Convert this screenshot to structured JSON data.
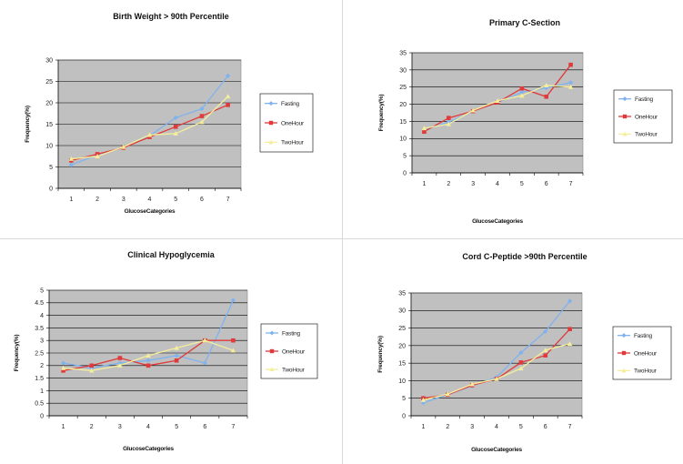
{
  "colors": {
    "plot_bg": "#c0c0c0",
    "grid": "#000000",
    "Fasting": "#7fb2ee",
    "OneHour": "#e03a3a",
    "TwoHour": "#f4ee9c"
  },
  "chart_data": [
    {
      "type": "line",
      "title": "Birth Weight > 90th Percentile",
      "xlabel": "GlucoseCategories",
      "ylabel": "Frequency(%)",
      "categories": [
        "1",
        "2",
        "3",
        "4",
        "5",
        "6",
        "7"
      ],
      "ylim": [
        0,
        30
      ],
      "yticks": [
        "0",
        "5",
        "10",
        "15",
        "20",
        "25",
        "30"
      ],
      "grid": true,
      "legend": "right",
      "series": [
        {
          "name": "Fasting",
          "values": [
            5.5,
            7.8,
            9.6,
            12.3,
            16.5,
            18.6,
            26.3
          ]
        },
        {
          "name": "OneHour",
          "values": [
            6.5,
            8.0,
            9.5,
            12.0,
            14.4,
            16.9,
            19.5
          ]
        },
        {
          "name": "TwoHour",
          "values": [
            6.9,
            7.5,
            9.7,
            12.5,
            12.8,
            15.5,
            21.5
          ]
        }
      ]
    },
    {
      "type": "line",
      "title": "Primary C-Section",
      "xlabel": "GlucoseCategories",
      "ylabel": "Frequency(%)",
      "categories": [
        "1",
        "2",
        "3",
        "4",
        "5",
        "6",
        "7"
      ],
      "ylim": [
        0,
        35
      ],
      "yticks": [
        "0",
        "5",
        "10",
        "15",
        "20",
        "25",
        "30",
        "35"
      ],
      "grid": true,
      "legend": "right",
      "series": [
        {
          "name": "Fasting",
          "values": [
            12.5,
            14.8,
            18.0,
            20.5,
            23.5,
            24.8,
            26.3
          ]
        },
        {
          "name": "OneHour",
          "values": [
            12.0,
            16.0,
            18.0,
            20.5,
            24.6,
            22.2,
            31.5
          ]
        },
        {
          "name": "TwoHour",
          "values": [
            13.0,
            14.2,
            18.2,
            21.0,
            22.5,
            25.5,
            25.0
          ]
        }
      ]
    },
    {
      "type": "line",
      "title": "Clinical Hypoglycemia",
      "xlabel": "GlucoseCategories",
      "ylabel": "Frequency(%)",
      "categories": [
        "1",
        "2",
        "3",
        "4",
        "5",
        "6",
        "7"
      ],
      "ylim": [
        0,
        5
      ],
      "yticks": [
        "0",
        "0.5",
        "1",
        "1.5",
        "2",
        "2.5",
        "3",
        "3.5",
        "4",
        "4.5",
        "5"
      ],
      "grid": true,
      "legend": "right",
      "series": [
        {
          "name": "Fasting",
          "values": [
            2.1,
            1.9,
            2.1,
            2.2,
            2.4,
            2.1,
            4.6
          ]
        },
        {
          "name": "OneHour",
          "values": [
            1.8,
            2.0,
            2.3,
            2.0,
            2.2,
            3.0,
            3.0
          ]
        },
        {
          "name": "TwoHour",
          "values": [
            1.9,
            1.8,
            2.0,
            2.4,
            2.7,
            3.0,
            2.6
          ]
        }
      ]
    },
    {
      "type": "line",
      "title": "Cord C-Peptide >90th Percentile",
      "xlabel": "GlucoseCategories",
      "ylabel": "Frequency(%)",
      "categories": [
        "1",
        "2",
        "3",
        "4",
        "5",
        "6",
        "7"
      ],
      "ylim": [
        0,
        35
      ],
      "yticks": [
        "0",
        "5",
        "10",
        "15",
        "20",
        "25",
        "30",
        "35"
      ],
      "grid": true,
      "legend": "right",
      "series": [
        {
          "name": "Fasting",
          "values": [
            3.7,
            6.0,
            8.5,
            11.0,
            18.0,
            24.0,
            32.7
          ]
        },
        {
          "name": "OneHour",
          "values": [
            5.0,
            6.0,
            8.7,
            10.5,
            15.2,
            17.2,
            24.7
          ]
        },
        {
          "name": "TwoHour",
          "values": [
            4.5,
            6.2,
            9.0,
            10.5,
            13.5,
            18.7,
            20.5
          ]
        }
      ]
    }
  ]
}
